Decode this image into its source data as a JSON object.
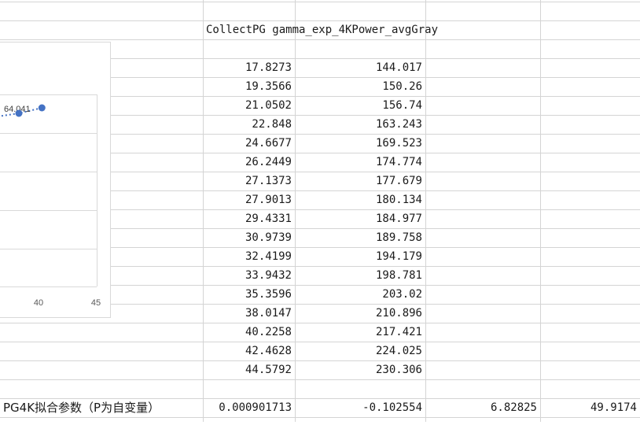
{
  "sheet": {
    "header_title": "CollectPG gamma_exp_4KPower_avgGray",
    "rows": [
      {
        "col_d": "17.8273",
        "col_e": "144.017"
      },
      {
        "col_d": "19.3566",
        "col_e": "150.26"
      },
      {
        "col_d": "21.0502",
        "col_e": "156.74"
      },
      {
        "col_d": "22.848",
        "col_e": "163.243"
      },
      {
        "col_d": "24.6677",
        "col_e": "169.523"
      },
      {
        "col_d": "26.2449",
        "col_e": "174.774"
      },
      {
        "col_d": "27.1373",
        "col_e": "177.679"
      },
      {
        "col_d": "27.9013",
        "col_e": "180.134"
      },
      {
        "col_d": "29.4331",
        "col_e": "184.977"
      },
      {
        "col_d": "30.9739",
        "col_e": "189.758"
      },
      {
        "col_d": "32.4199",
        "col_e": "194.179"
      },
      {
        "col_d": "33.9432",
        "col_e": "198.781"
      },
      {
        "col_d": "35.3596",
        "col_e": "203.02"
      },
      {
        "col_d": "38.0147",
        "col_e": "210.896"
      },
      {
        "col_d": "40.2258",
        "col_e": "217.421"
      },
      {
        "col_d": "42.4628",
        "col_e": "224.025"
      },
      {
        "col_d": "44.5792",
        "col_e": "230.306"
      }
    ],
    "fit_row": {
      "label": "PG4K拟合参数（P为自变量）",
      "values": [
        "0.000901713",
        "-0.102554",
        "6.82825",
        "49.9174"
      ]
    },
    "colors": {
      "gridline": "#d4d4d4",
      "marker": "#4472c4"
    }
  },
  "chart_data": {
    "type": "scatter",
    "x_ticks": [
      "40",
      "45"
    ],
    "points": [
      {
        "x": 38.0147,
        "y": 210.896
      },
      {
        "x": 40.2258,
        "y": 217.421
      }
    ],
    "partial_data_label": "64.041",
    "trendline": "dotted",
    "grid": true
  }
}
